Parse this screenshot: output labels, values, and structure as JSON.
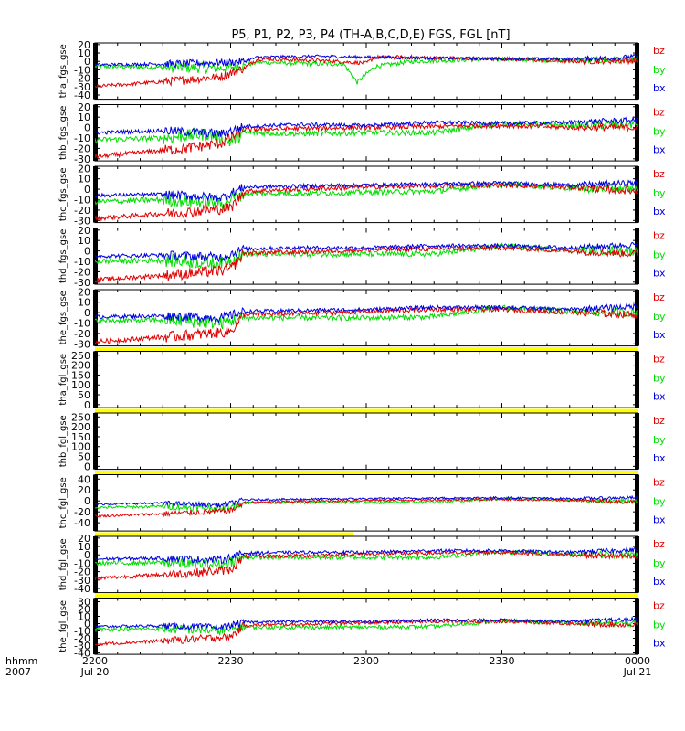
{
  "title": "P5, P1, P2, P3, P4 (TH-A,B,C,D,E) FGS, FGL [nT]",
  "colors": {
    "bz": "#e00000",
    "by": "#00dd00",
    "bx": "#0000e0",
    "gap_bar": "#ffff00"
  },
  "xaxis": {
    "format_label": "hhmm",
    "year_label": "2007",
    "ticks": [
      {
        "t": 0,
        "hhmm": "2200",
        "date": "Jul 20"
      },
      {
        "t": 30,
        "hhmm": "2230",
        "date": ""
      },
      {
        "t": 60,
        "hhmm": "2300",
        "date": ""
      },
      {
        "t": 90,
        "hhmm": "2330",
        "date": ""
      },
      {
        "t": 120,
        "hhmm": "0000",
        "date": "Jul 21"
      }
    ],
    "range_minutes": [
      0,
      120
    ]
  },
  "chart_data": [
    {
      "type": "line",
      "ylabel": "tha_fgs_gse",
      "ylim": [
        -45,
        22
      ],
      "yticks": [
        "20",
        "10",
        "0",
        "-10",
        "-20",
        "-30",
        "-40"
      ],
      "ytick_values": [
        20,
        10,
        0,
        -10,
        -20,
        -30,
        -40
      ],
      "legend": [
        "bz",
        "by",
        "bx"
      ],
      "gap_bar_after": false,
      "series": [
        {
          "name": "bx",
          "x": [
            0,
            15,
            30,
            33,
            36,
            50,
            60,
            75,
            90,
            105,
            115,
            120
          ],
          "values": [
            -4,
            -3,
            -1,
            0,
            5,
            6,
            5,
            4,
            3,
            3,
            4,
            6
          ]
        },
        {
          "name": "by",
          "x": [
            0,
            15,
            28,
            33,
            36,
            50,
            55,
            58,
            60,
            62,
            70,
            90,
            105,
            120
          ],
          "values": [
            -6,
            -7,
            -8,
            -5,
            -1,
            -3,
            -3,
            -25,
            -15,
            -6,
            0,
            3,
            1,
            2
          ]
        },
        {
          "name": "bz",
          "x": [
            0,
            10,
            20,
            28,
            33,
            36,
            50,
            60,
            62,
            70,
            75,
            90,
            105,
            120
          ],
          "values": [
            -30,
            -26,
            -22,
            -18,
            -8,
            3,
            1,
            -2,
            5,
            5,
            4,
            3,
            0,
            1
          ]
        }
      ]
    },
    {
      "type": "line",
      "ylabel": "thb_fgs_gse",
      "ylim": [
        -32,
        22
      ],
      "yticks": [
        "20",
        "10",
        "0",
        "-10",
        "-20",
        "-30"
      ],
      "ytick_values": [
        20,
        10,
        0,
        -10,
        -20,
        -30
      ],
      "legend": [
        "bz",
        "by",
        "bx"
      ],
      "gap_bar_after": false,
      "series": [
        {
          "name": "bx",
          "x": [
            0,
            15,
            28,
            33,
            45,
            60,
            75,
            90,
            105,
            120
          ],
          "values": [
            -5,
            -3,
            -6,
            1,
            3,
            2,
            5,
            4,
            5,
            7
          ]
        },
        {
          "name": "by",
          "x": [
            0,
            15,
            25,
            30,
            33,
            45,
            60,
            75,
            90,
            105,
            120
          ],
          "values": [
            -12,
            -10,
            -6,
            -14,
            -5,
            -6,
            -5,
            -5,
            4,
            2,
            3
          ]
        },
        {
          "name": "bz",
          "x": [
            0,
            10,
            20,
            28,
            33,
            45,
            60,
            75,
            90,
            105,
            120
          ],
          "values": [
            -28,
            -24,
            -20,
            -15,
            -2,
            -1,
            0,
            1,
            2,
            0,
            0
          ]
        }
      ]
    },
    {
      "type": "line",
      "ylabel": "thc_fgs_gse",
      "ylim": [
        -32,
        22
      ],
      "yticks": [
        "20",
        "10",
        "0",
        "-10",
        "-20",
        "-30"
      ],
      "ytick_values": [
        20,
        10,
        0,
        -10,
        -20,
        -30
      ],
      "legend": [
        "bz",
        "by",
        "bx"
      ],
      "gap_bar_after": false,
      "series": [
        {
          "name": "bx",
          "x": [
            0,
            15,
            28,
            33,
            45,
            60,
            75,
            90,
            105,
            120
          ],
          "values": [
            -6,
            -5,
            -8,
            2,
            3,
            4,
            5,
            6,
            4,
            6
          ]
        },
        {
          "name": "by",
          "x": [
            0,
            15,
            28,
            33,
            45,
            60,
            75,
            90,
            105,
            120
          ],
          "values": [
            -12,
            -10,
            -13,
            -4,
            -4,
            -3,
            -2,
            5,
            1,
            0
          ]
        },
        {
          "name": "bz",
          "x": [
            0,
            10,
            20,
            30,
            33,
            45,
            60,
            75,
            90,
            105,
            120
          ],
          "values": [
            -28,
            -25,
            -22,
            -18,
            -2,
            0,
            2,
            3,
            4,
            2,
            -2
          ]
        }
      ]
    },
    {
      "type": "line",
      "ylabel": "thd_fgs_gse",
      "ylim": [
        -32,
        22
      ],
      "yticks": [
        "20",
        "10",
        "0",
        "-10",
        "-20",
        "-30"
      ],
      "ytick_values": [
        20,
        10,
        0,
        -10,
        -20,
        -30
      ],
      "legend": [
        "bz",
        "by",
        "bx"
      ],
      "gap_bar_after": false,
      "series": [
        {
          "name": "bx",
          "x": [
            0,
            15,
            28,
            33,
            45,
            60,
            75,
            90,
            105,
            120
          ],
          "values": [
            -5,
            -4,
            -6,
            2,
            3,
            3,
            5,
            5,
            3,
            6
          ]
        },
        {
          "name": "by",
          "x": [
            0,
            15,
            28,
            33,
            45,
            60,
            75,
            90,
            105,
            120
          ],
          "values": [
            -10,
            -9,
            -12,
            -3,
            -3,
            -3,
            -3,
            5,
            1,
            0
          ]
        },
        {
          "name": "bz",
          "x": [
            0,
            10,
            20,
            30,
            33,
            45,
            60,
            75,
            90,
            105,
            120
          ],
          "values": [
            -28,
            -25,
            -22,
            -18,
            -2,
            -1,
            1,
            2,
            3,
            0,
            -3
          ]
        }
      ]
    },
    {
      "type": "line",
      "ylabel": "the_fgs_gse",
      "ylim": [
        -32,
        22
      ],
      "yticks": [
        "20",
        "10",
        "0",
        "-10",
        "-20",
        "-30"
      ],
      "ytick_values": [
        20,
        10,
        0,
        -10,
        -20,
        -30
      ],
      "legend": [
        "bz",
        "by",
        "bx"
      ],
      "gap_bar_after": true,
      "series": [
        {
          "name": "bx",
          "x": [
            0,
            15,
            28,
            33,
            45,
            60,
            75,
            90,
            105,
            120
          ],
          "values": [
            -4,
            -3,
            -5,
            1,
            2,
            3,
            5,
            5,
            3,
            6
          ]
        },
        {
          "name": "by",
          "x": [
            0,
            15,
            28,
            33,
            45,
            60,
            75,
            90,
            105,
            120
          ],
          "values": [
            -8,
            -7,
            -10,
            -5,
            -5,
            -5,
            -4,
            5,
            1,
            0
          ]
        },
        {
          "name": "bz",
          "x": [
            0,
            10,
            20,
            30,
            33,
            45,
            60,
            75,
            90,
            105,
            120
          ],
          "values": [
            -28,
            -25,
            -22,
            -18,
            -2,
            -1,
            1,
            3,
            3,
            0,
            -2
          ]
        }
      ]
    },
    {
      "type": "line",
      "ylabel": "tha_fgl_gse",
      "ylim": [
        -15,
        270
      ],
      "yticks": [
        "250",
        "200",
        "150",
        "100",
        "50",
        "0"
      ],
      "ytick_values": [
        250,
        200,
        150,
        100,
        50,
        0
      ],
      "legend": [
        "bz",
        "by",
        "bx"
      ],
      "gap_bar_after": true,
      "series": []
    },
    {
      "type": "line",
      "ylabel": "thb_fgl_gse",
      "ylim": [
        -15,
        270
      ],
      "yticks": [
        "250",
        "200",
        "150",
        "100",
        "50",
        "0"
      ],
      "ytick_values": [
        250,
        200,
        150,
        100,
        50,
        0
      ],
      "legend": [
        "bz",
        "by",
        "bx"
      ],
      "gap_bar_after": true,
      "series": []
    },
    {
      "type": "line",
      "ylabel": "thc_fgl_gse",
      "ylim": [
        -55,
        48
      ],
      "yticks": [
        "40",
        "20",
        "0",
        "-20",
        "-40"
      ],
      "ytick_values": [
        40,
        20,
        0,
        -20,
        -40
      ],
      "legend": [
        "bz",
        "by",
        "bx"
      ],
      "gap_bar_after": true,
      "gap_bar_until": 57,
      "series": [
        {
          "name": "bx",
          "x": [
            0,
            15,
            28,
            33,
            45,
            60,
            75,
            90,
            105,
            120
          ],
          "values": [
            -6,
            -4,
            -8,
            2,
            3,
            4,
            5,
            6,
            4,
            6
          ]
        },
        {
          "name": "by",
          "x": [
            0,
            15,
            28,
            33,
            45,
            60,
            75,
            90,
            105,
            120
          ],
          "values": [
            -12,
            -10,
            -14,
            -3,
            -3,
            -3,
            -2,
            4,
            1,
            0
          ]
        },
        {
          "name": "bz",
          "x": [
            0,
            10,
            20,
            30,
            33,
            45,
            60,
            75,
            90,
            105,
            120
          ],
          "values": [
            -28,
            -25,
            -22,
            -18,
            -3,
            -1,
            1,
            2,
            3,
            1,
            -2
          ]
        }
      ]
    },
    {
      "type": "line",
      "ylabel": "thd_fgl_gse",
      "ylim": [
        -45,
        22
      ],
      "yticks": [
        "20",
        "10",
        "0",
        "-10",
        "-20",
        "-30",
        "-40"
      ],
      "ytick_values": [
        20,
        10,
        0,
        -10,
        -20,
        -30,
        -40
      ],
      "legend": [
        "bz",
        "by",
        "bx"
      ],
      "gap_bar_after": true,
      "series": [
        {
          "name": "bx",
          "x": [
            0,
            15,
            28,
            33,
            45,
            60,
            75,
            90,
            105,
            120
          ],
          "values": [
            -5,
            -4,
            -6,
            2,
            3,
            3,
            5,
            5,
            3,
            6
          ]
        },
        {
          "name": "by",
          "x": [
            0,
            15,
            28,
            33,
            45,
            60,
            75,
            90,
            105,
            120
          ],
          "values": [
            -10,
            -9,
            -12,
            -3,
            -3,
            -3,
            -3,
            4,
            1,
            0
          ]
        },
        {
          "name": "bz",
          "x": [
            0,
            10,
            20,
            30,
            33,
            45,
            60,
            75,
            90,
            105,
            120
          ],
          "values": [
            -28,
            -25,
            -22,
            -18,
            -2,
            -1,
            1,
            2,
            3,
            0,
            -3
          ]
        }
      ]
    },
    {
      "type": "line",
      "ylabel": "the_fgl_gse",
      "ylim": [
        -42,
        35
      ],
      "yticks": [
        "30",
        "20",
        "10",
        "0",
        "-10",
        "-20",
        "-30",
        "-40"
      ],
      "ytick_values": [
        30,
        20,
        10,
        0,
        -10,
        -20,
        -30,
        -40
      ],
      "legend": [
        "bz",
        "by",
        "bx"
      ],
      "gap_bar_after": false,
      "series": [
        {
          "name": "bx",
          "x": [
            0,
            15,
            28,
            33,
            45,
            60,
            75,
            90,
            105,
            120
          ],
          "values": [
            -4,
            -3,
            -5,
            2,
            3,
            3,
            5,
            5,
            3,
            6
          ]
        },
        {
          "name": "by",
          "x": [
            0,
            15,
            28,
            33,
            45,
            60,
            75,
            90,
            105,
            120
          ],
          "values": [
            -8,
            -7,
            -10,
            -5,
            -5,
            -5,
            -4,
            4,
            1,
            0
          ]
        },
        {
          "name": "bz",
          "x": [
            0,
            10,
            20,
            30,
            33,
            45,
            60,
            75,
            90,
            105,
            120
          ],
          "values": [
            -28,
            -25,
            -22,
            -18,
            -2,
            -1,
            1,
            3,
            3,
            0,
            -2
          ]
        }
      ]
    }
  ]
}
